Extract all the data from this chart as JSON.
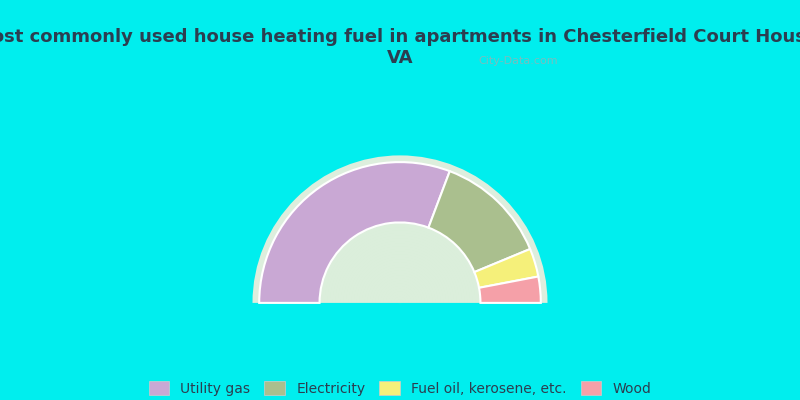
{
  "title": "Most commonly used house heating fuel in apartments in Chesterfield Court House,\nVA",
  "segments": [
    {
      "label": "Utility gas",
      "value": 61.5,
      "color": "#C9A8D4"
    },
    {
      "label": "Electricity",
      "value": 26.0,
      "color": "#AABF8E"
    },
    {
      "label": "Fuel oil, kerosene, etc.",
      "value": 6.5,
      "color": "#F5F07A"
    },
    {
      "label": "Wood",
      "value": 6.0,
      "color": "#F5A0A8"
    }
  ],
  "bg_color": "#00EEEE",
  "chart_bg": "#E8F5E0",
  "title_color": "#2C3E50",
  "title_fontsize": 13,
  "legend_fontsize": 10,
  "watermark": "City-Data.com"
}
